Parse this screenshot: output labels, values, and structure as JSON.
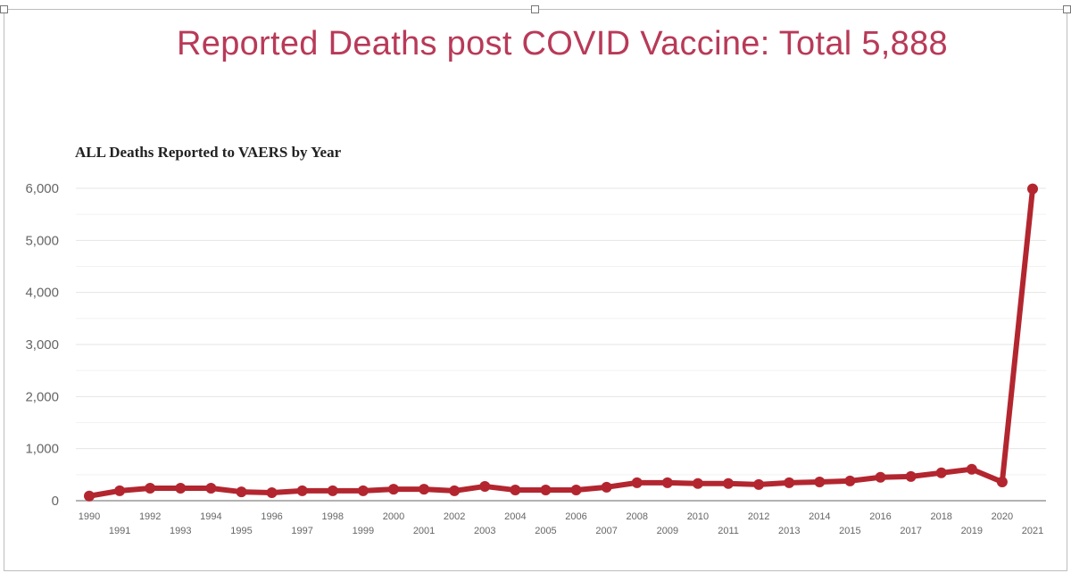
{
  "header": {
    "title": "Reported Deaths post COVID Vaccine: Total 5,888"
  },
  "chart_data": {
    "type": "line",
    "title": "ALL Deaths Reported to VAERS by Year",
    "xlabel": "",
    "ylabel": "",
    "x": [
      1990,
      1991,
      1992,
      1993,
      1994,
      1995,
      1996,
      1997,
      1998,
      1999,
      2000,
      2001,
      2002,
      2003,
      2004,
      2005,
      2006,
      2007,
      2008,
      2009,
      2010,
      2011,
      2012,
      2013,
      2014,
      2015,
      2016,
      2017,
      2018,
      2019,
      2020,
      2021
    ],
    "values": [
      90,
      190,
      240,
      240,
      240,
      170,
      155,
      190,
      190,
      190,
      220,
      220,
      190,
      275,
      205,
      205,
      205,
      260,
      345,
      345,
      330,
      330,
      310,
      345,
      360,
      380,
      450,
      465,
      535,
      605,
      360,
      5990
    ],
    "ylim": [
      0,
      6000
    ],
    "yticks": [
      0,
      1000,
      2000,
      3000,
      4000,
      5000,
      6000
    ],
    "ytick_labels": [
      "0",
      "1,000",
      "2,000",
      "3,000",
      "4,000",
      "5,000",
      "6,000"
    ],
    "grid": true,
    "series_color": "#b3262f",
    "title_color": "#b83a58"
  }
}
